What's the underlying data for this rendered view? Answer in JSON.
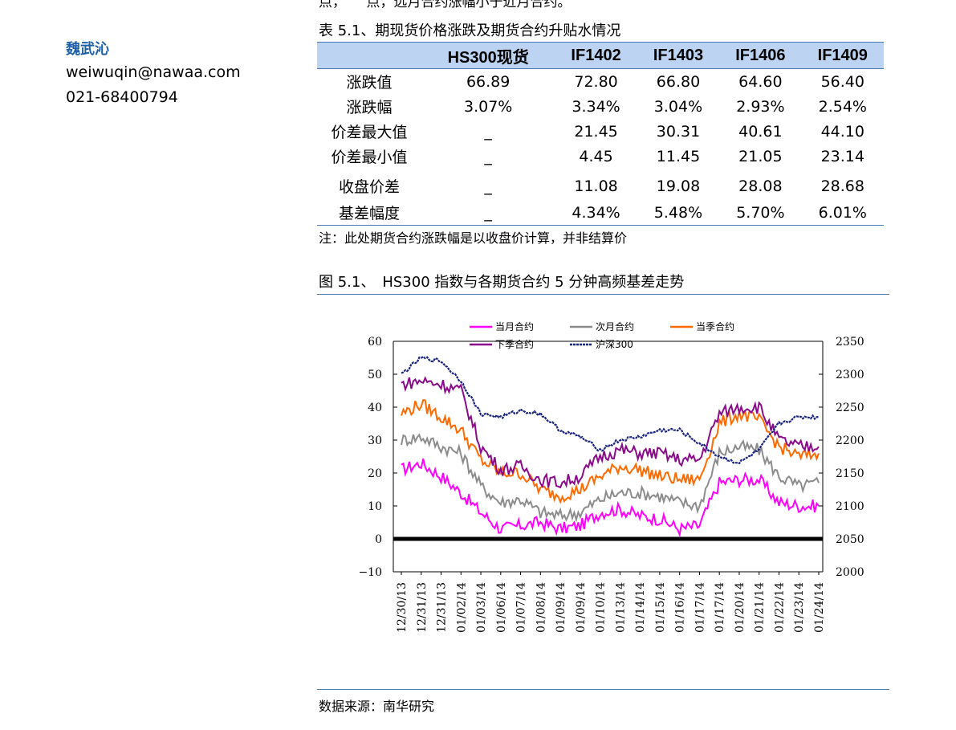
{
  "author": {
    "name": "魏武沁",
    "email": "weiwuqin@nawaa.com",
    "phone": "021-68400794"
  },
  "top_clipped_text": "点，　　点，远月合约涨幅小于近月合约。",
  "table": {
    "title": "表 5.1、期现货价格涨跌及期货合约升贴水情况",
    "headers": [
      "",
      "HS300现货",
      "IF1402",
      "IF1403",
      "IF1406",
      "IF1409"
    ],
    "rows": [
      {
        "label": "涨跌值",
        "values": [
          "66.89",
          "72.80",
          "66.80",
          "64.60",
          "56.40"
        ]
      },
      {
        "label": "涨跌幅",
        "values": [
          "3.07%",
          "3.34%",
          "3.04%",
          "2.93%",
          "2.54%"
        ]
      },
      {
        "label": "价差最大值",
        "values": [
          "_",
          "21.45",
          "30.31",
          "40.61",
          "44.10"
        ]
      },
      {
        "label": "价差最小值",
        "values": [
          "_",
          "4.45",
          "11.45",
          "21.05",
          "23.14"
        ]
      },
      {
        "label": "收盘价差",
        "values": [
          "_",
          "11.08",
          "19.08",
          "28.08",
          "28.68"
        ]
      },
      {
        "label": "基差幅度",
        "values": [
          "_",
          "4.34%",
          "5.48%",
          "5.70%",
          "6.01%"
        ]
      }
    ],
    "note": "注：此处期货合约涨跌幅是以收盘价计算，并非结算价"
  },
  "figure": {
    "title": "图 5.1、　HS300 指数与各期货合约 5 分钟高频基差走势"
  },
  "source": "数据来源：南华研究",
  "chart_data": {
    "type": "line",
    "x": [
      "12/30/13",
      "12/31/13",
      "12/31/13",
      "01/02/14",
      "01/03/14",
      "01/06/14",
      "01/07/14",
      "01/08/14",
      "01/09/14",
      "01/09/14",
      "01/10/14",
      "01/13/14",
      "01/14/14",
      "01/15/14",
      "01/16/14",
      "01/17/14",
      "01/17/14",
      "01/20/14",
      "01/21/14",
      "01/22/14",
      "01/23/14",
      "01/24/14"
    ],
    "left_ylim": [
      -10,
      60
    ],
    "left_yticks": [
      "-10",
      "0",
      "10",
      "20",
      "30",
      "40",
      "50",
      "60"
    ],
    "right_ylim": [
      2000,
      2350
    ],
    "right_yticks": [
      "2000",
      "2050",
      "2100",
      "2150",
      "2200",
      "2250",
      "2300",
      "2350"
    ],
    "series": [
      {
        "name": "当月合约",
        "color": "#ff00ff",
        "axis": "left",
        "values": [
          21,
          23,
          19,
          14,
          8,
          3,
          4,
          5,
          3,
          4,
          8,
          9,
          7,
          6,
          3,
          4,
          17,
          18,
          18,
          11,
          10,
          10
        ]
      },
      {
        "name": "次月合约",
        "color": "#8c8c8c",
        "axis": "left",
        "values": [
          30,
          31,
          28,
          26,
          16,
          11,
          12,
          8,
          7,
          8,
          12,
          14,
          14,
          13,
          11,
          10,
          26,
          28,
          27,
          19,
          16,
          17
        ]
      },
      {
        "name": "当季合约",
        "color": "#ff6a00",
        "axis": "left",
        "values": [
          38,
          41,
          37,
          33,
          24,
          20,
          20,
          15,
          13,
          15,
          19,
          22,
          21,
          19,
          18,
          18,
          35,
          38,
          36,
          28,
          25,
          26
        ]
      },
      {
        "name": "下季合约",
        "color": "#8b0a8b",
        "axis": "left",
        "values": [
          47,
          48,
          47,
          45,
          28,
          21,
          22,
          18,
          17,
          19,
          25,
          27,
          26,
          26,
          24,
          24,
          38,
          40,
          40,
          30,
          28,
          28
        ]
      },
      {
        "name": "沪深300",
        "color": "#1a237e",
        "axis": "right",
        "values": [
          2300,
          2325,
          2320,
          2290,
          2240,
          2235,
          2245,
          2240,
          2215,
          2205,
          2185,
          2200,
          2205,
          2215,
          2215,
          2195,
          2175,
          2165,
          2185,
          2225,
          2235,
          2235
        ]
      }
    ],
    "zero_line": true,
    "legend_placement": "top"
  }
}
